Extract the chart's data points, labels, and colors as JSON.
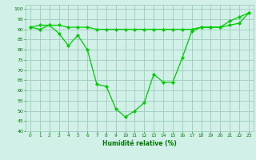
{
  "line1_x": [
    0,
    1,
    2,
    3,
    4,
    5,
    6,
    7,
    8,
    9,
    10,
    11,
    12,
    13,
    14,
    15,
    16,
    17,
    18,
    19,
    20,
    21,
    22,
    23
  ],
  "line1_y": [
    91,
    90,
    92,
    88,
    82,
    87,
    80,
    63,
    62,
    51,
    47,
    50,
    54,
    68,
    64,
    64,
    76,
    89,
    91,
    91,
    91,
    94,
    96,
    98
  ],
  "line2_x": [
    0,
    1,
    2,
    3,
    4,
    5,
    6,
    7,
    8,
    9,
    10,
    11,
    12,
    13,
    14,
    15,
    16,
    17,
    18,
    19,
    20,
    21,
    22,
    23
  ],
  "line2_y": [
    91,
    92,
    92,
    92,
    91,
    91,
    91,
    90,
    90,
    90,
    90,
    90,
    90,
    90,
    90,
    90,
    90,
    90,
    91,
    91,
    91,
    92,
    93,
    98
  ],
  "line_color": "#00cc00",
  "marker": "D",
  "marker_size": 2.0,
  "xlabel": "Humidité relative (%)",
  "xlim": [
    -0.5,
    23.5
  ],
  "ylim": [
    40,
    102
  ],
  "yticks": [
    40,
    45,
    50,
    55,
    60,
    65,
    70,
    75,
    80,
    85,
    90,
    95,
    100
  ],
  "xticks": [
    0,
    1,
    2,
    3,
    4,
    5,
    6,
    7,
    8,
    9,
    10,
    11,
    12,
    13,
    14,
    15,
    16,
    17,
    18,
    19,
    20,
    21,
    22,
    23
  ],
  "bg_color": "#d0f0e8",
  "grid_color": "#a0ccbb",
  "label_color": "#007700"
}
